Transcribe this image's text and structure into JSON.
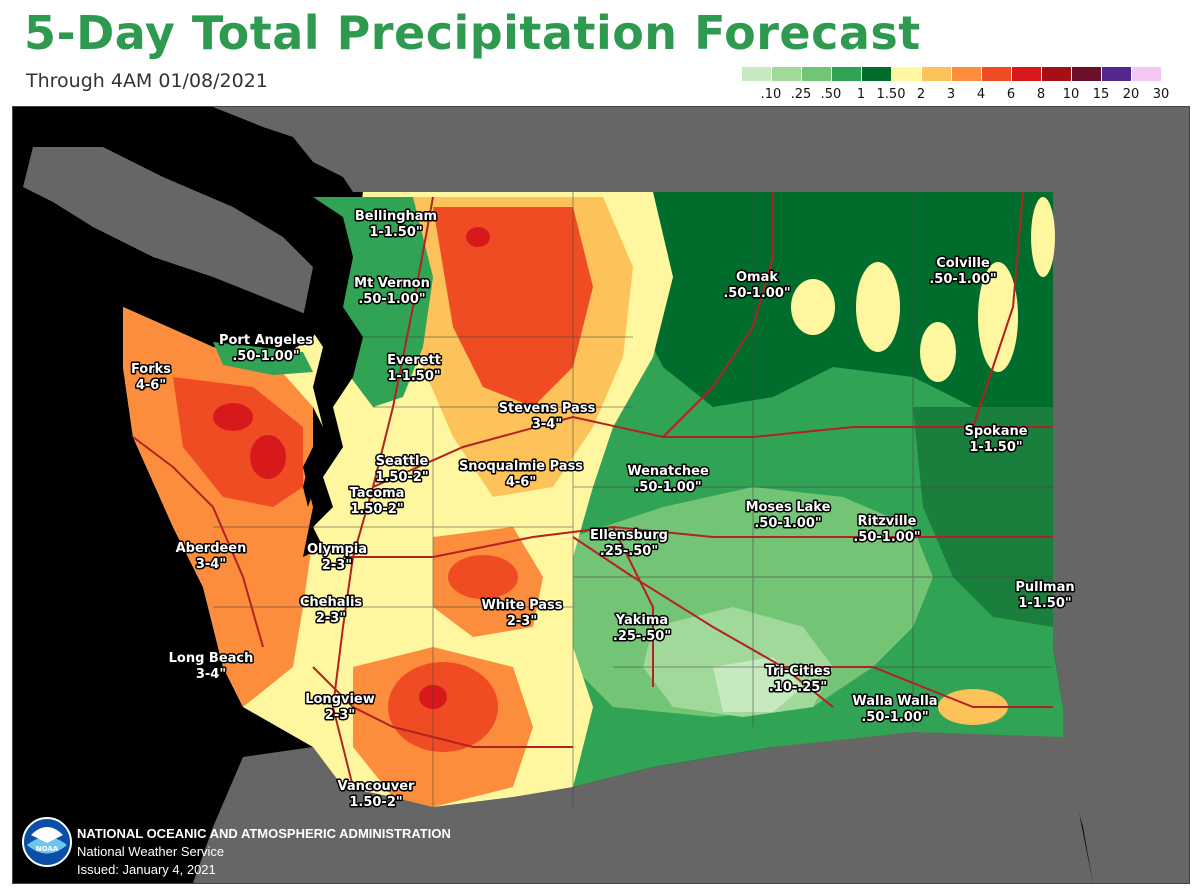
{
  "header": {
    "title": "5-Day Total Precipitation Forecast",
    "subtitle": "Through 4AM 01/08/2021"
  },
  "legend": {
    "labels": [
      ".10",
      ".25",
      ".50",
      "1",
      "1.50",
      "2",
      "3",
      "4",
      "6",
      "8",
      "10",
      "15",
      "20",
      "30"
    ],
    "colors": [
      "#c7e9c0",
      "#a1d99b",
      "#74c476",
      "#31a354",
      "#006d2c",
      "#fff7a0",
      "#fdc35a",
      "#fc8d3c",
      "#f04c24",
      "#d7191c",
      "#a50f15",
      "#6b0f2a",
      "#54278f",
      "#f3c6f3"
    ]
  },
  "map_colors": {
    "ocean": "#000000",
    "outside_land": "#666666",
    "state_lines": "#222222",
    "roads": "#b22222"
  },
  "cities": [
    {
      "name": "Bellingham",
      "range": "1-1.50\""
    },
    {
      "name": "Mt Vernon",
      "range": ".50-1.00\""
    },
    {
      "name": "Port Angeles",
      "range": ".50-1.00\""
    },
    {
      "name": "Everett",
      "range": "1-1.50\""
    },
    {
      "name": "Forks",
      "range": "4-6\""
    },
    {
      "name": "Stevens Pass",
      "range": "3-4\""
    },
    {
      "name": "Seattle",
      "range": "1.50-2\""
    },
    {
      "name": "Snoqualmie Pass",
      "range": "4-6\""
    },
    {
      "name": "Tacoma",
      "range": "1.50-2\""
    },
    {
      "name": "Aberdeen",
      "range": "3-4\""
    },
    {
      "name": "Olympia",
      "range": "2-3\""
    },
    {
      "name": "Chehalis",
      "range": "2-3\""
    },
    {
      "name": "White Pass",
      "range": "2-3\""
    },
    {
      "name": "Long Beach",
      "range": "3-4\""
    },
    {
      "name": "Longview",
      "range": "2-3\""
    },
    {
      "name": "Vancouver",
      "range": "1.50-2\""
    },
    {
      "name": "Omak",
      "range": ".50-1.00\""
    },
    {
      "name": "Colville",
      "range": ".50-1.00\""
    },
    {
      "name": "Spokane",
      "range": "1-1.50\""
    },
    {
      "name": "Wenatchee",
      "range": ".50-1.00\""
    },
    {
      "name": "Moses Lake",
      "range": ".50-1.00\""
    },
    {
      "name": "Ritzville",
      "range": ".50-1.00\""
    },
    {
      "name": "Ellensburg",
      "range": ".25-.50\""
    },
    {
      "name": "Yakima",
      "range": ".25-.50\""
    },
    {
      "name": "Pullman",
      "range": "1-1.50\""
    },
    {
      "name": "Tri-Cities",
      "range": ".10-.25\""
    },
    {
      "name": "Walla Walla",
      "range": ".50-1.00\""
    }
  ],
  "footer": {
    "agency": "NATIONAL OCEANIC AND ATMOSPHERIC ADMINISTRATION",
    "service": "National Weather Service",
    "issued": "Issued: January 4, 2021",
    "logo_text": "NOAA"
  }
}
